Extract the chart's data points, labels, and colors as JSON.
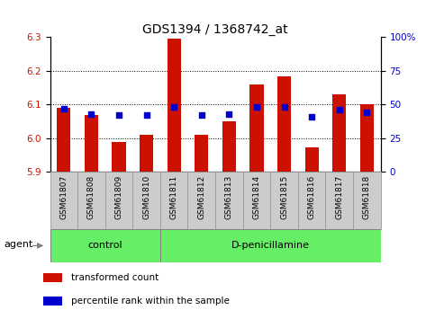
{
  "title": "GDS1394 / 1368742_at",
  "samples": [
    "GSM61807",
    "GSM61808",
    "GSM61809",
    "GSM61810",
    "GSM61811",
    "GSM61812",
    "GSM61813",
    "GSM61814",
    "GSM61815",
    "GSM61816",
    "GSM61817",
    "GSM61818"
  ],
  "transformed_count": [
    6.09,
    6.07,
    5.99,
    6.01,
    6.295,
    6.01,
    6.05,
    6.16,
    6.185,
    5.972,
    6.13,
    6.1
  ],
  "percentile_rank": [
    47,
    43,
    42,
    42,
    48,
    42,
    43,
    48,
    48,
    41,
    46,
    44
  ],
  "ylim_left": [
    5.9,
    6.3
  ],
  "ylim_right": [
    0,
    100
  ],
  "bar_color": "#cc1100",
  "dot_color": "#0000cc",
  "bar_bottom": 5.9,
  "yticks_left": [
    5.9,
    6.0,
    6.1,
    6.2,
    6.3
  ],
  "yticks_right": [
    0,
    25,
    50,
    75,
    100
  ],
  "ytick_labels_right": [
    "0",
    "25",
    "50",
    "75",
    "100%"
  ],
  "control_samples": 4,
  "control_label": "control",
  "treatment_label": "D-penicillamine",
  "agent_label": "agent",
  "legend_bar_label": "transformed count",
  "legend_dot_label": "percentile rank within the sample",
  "grid_color": "#000000",
  "bg_plot": "#ffffff",
  "bg_xticklabel": "#cccccc",
  "bg_control": "#66ee66",
  "bg_treatment": "#66ee66",
  "title_fontsize": 10,
  "tick_fontsize": 7.5,
  "xlabel_fontsize": 6.5,
  "label_fontsize": 8
}
